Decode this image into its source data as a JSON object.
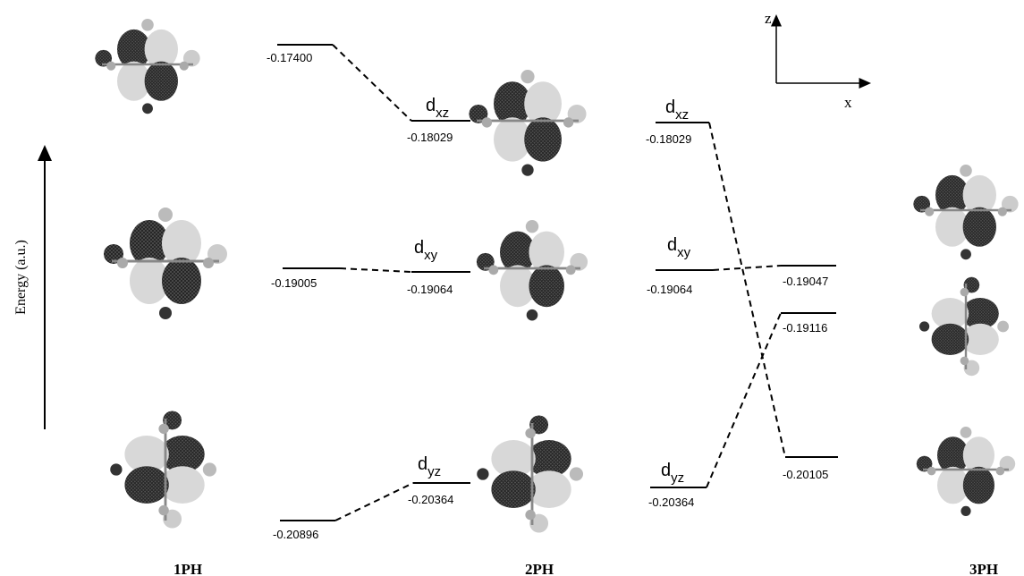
{
  "energy_axis_label": "Energy (a.u.)",
  "axes": {
    "z": "z",
    "x": "x"
  },
  "columns": [
    "1PH",
    "2PH",
    "3PH"
  ],
  "levels": [
    "-0.17400",
    "-0.19005",
    "-0.20896",
    "-0.18029",
    "-0.19064",
    "-0.20364",
    "-0.18029",
    "-0.19064",
    "-0.20364",
    "-0.19047",
    "-0.19116",
    "-0.20105"
  ],
  "orbitals": [
    {
      "main": "d",
      "sub": "xz"
    },
    {
      "main": "d",
      "sub": "xy"
    },
    {
      "main": "d",
      "sub": "yz"
    },
    {
      "main": "d",
      "sub": "xz"
    },
    {
      "main": "d",
      "sub": "xy"
    },
    {
      "main": "d",
      "sub": "yz"
    }
  ]
}
